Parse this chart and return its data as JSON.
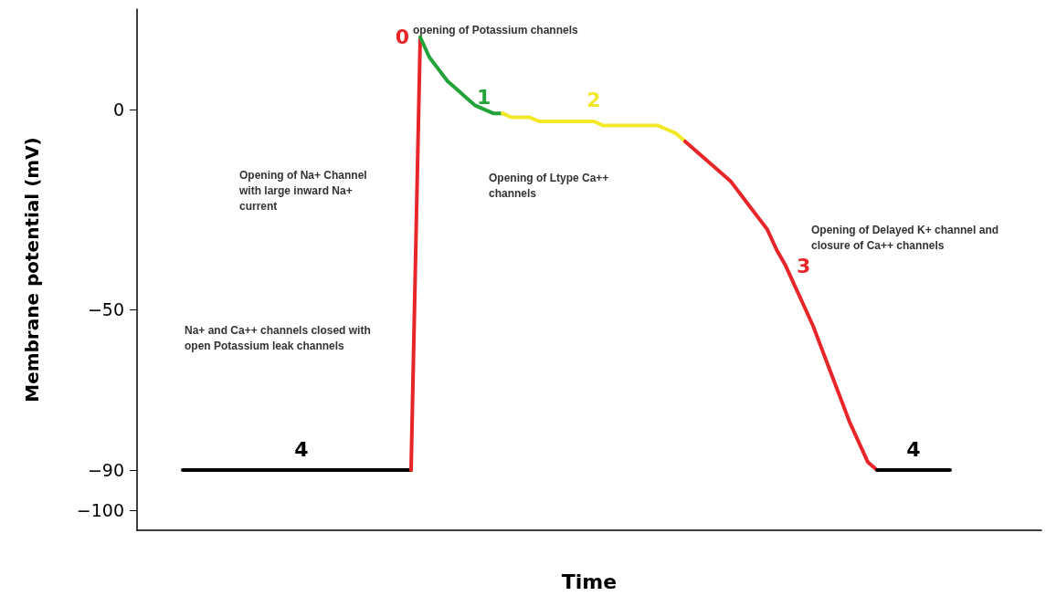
{
  "chart_data": {
    "type": "line",
    "xlabel": "Time",
    "ylabel": "Membrane potential (mV)",
    "ylim": [
      -105,
      25
    ],
    "yticks": [
      0,
      -50,
      -90,
      -100
    ],
    "grid": false,
    "legend": false,
    "marker": "none",
    "line_style": "solid",
    "categories": [
      null,
      null,
      null,
      null,
      null,
      null,
      null,
      null,
      null,
      null,
      null,
      null,
      null,
      null,
      null,
      null,
      null,
      null,
      null,
      null,
      null,
      null,
      null,
      null,
      null,
      null,
      null,
      null,
      null,
      null,
      null,
      null,
      null,
      null,
      null,
      null,
      null,
      null,
      null,
      null,
      null,
      null,
      null,
      null,
      null,
      null,
      null,
      null,
      null,
      null,
      null,
      null,
      null,
      null,
      null,
      null,
      null,
      null,
      null,
      null,
      null,
      null,
      null,
      null,
      null,
      null,
      null,
      null,
      null,
      null,
      null,
      null,
      null,
      null,
      null,
      null,
      null,
      null,
      null,
      null,
      null,
      null,
      null,
      null,
      null,
      null,
      null,
      null,
      null,
      null,
      null,
      null,
      null,
      null,
      null,
      null,
      null,
      null,
      null,
      null
    ],
    "series": [
      {
        "name": "4",
        "color": "#000000",
        "values": [
          null,
          null,
          null,
          null,
          null,
          -90,
          -90,
          -90,
          -90,
          -90,
          -90,
          -90,
          -90,
          -90,
          -90,
          -90,
          -90,
          -90,
          -90,
          -90,
          -90,
          -90,
          -90,
          -90,
          -90,
          -90,
          -90,
          -90,
          -90,
          -90,
          -90,
          null,
          null,
          null,
          null,
          null,
          null,
          null,
          null,
          null,
          null,
          null,
          null,
          null,
          null,
          null,
          null,
          null,
          null,
          null,
          null,
          null,
          null,
          null,
          null,
          null,
          null,
          null,
          null,
          null,
          null,
          null,
          null,
          null,
          null,
          null,
          null,
          null,
          null,
          null,
          null,
          null,
          null,
          null,
          null,
          null,
          null,
          null,
          null,
          null,
          null,
          null,
          null,
          null,
          null,
          null,
          null,
          null,
          null,
          null,
          null,
          null,
          null,
          null,
          null,
          null,
          null,
          null,
          null,
          null
        ]
      },
      {
        "name": "0",
        "color": "#e8262a",
        "values": [
          null,
          null,
          null,
          null,
          null,
          null,
          null,
          null,
          null,
          null,
          null,
          null,
          null,
          null,
          null,
          null,
          null,
          null,
          null,
          null,
          null,
          null,
          null,
          null,
          null,
          null,
          null,
          null,
          null,
          null,
          -90,
          18,
          null,
          null,
          null,
          null,
          null,
          null,
          null,
          null,
          null,
          null,
          null,
          null,
          null,
          null,
          null,
          null,
          null,
          null,
          null,
          null,
          null,
          null,
          null,
          null,
          null,
          null,
          null,
          null,
          null,
          null,
          null,
          null,
          null,
          null,
          null,
          null,
          null,
          null,
          null,
          null,
          null,
          null,
          null,
          null,
          null,
          null,
          null,
          null,
          null,
          null,
          null,
          null,
          null,
          null,
          null,
          null,
          null,
          null,
          null,
          null,
          null,
          null,
          null,
          null,
          null,
          null,
          null,
          null
        ]
      },
      {
        "name": "1",
        "color": "#22a33a",
        "values": [
          null,
          null,
          null,
          null,
          null,
          null,
          null,
          null,
          null,
          null,
          null,
          null,
          null,
          null,
          null,
          null,
          null,
          null,
          null,
          null,
          null,
          null,
          null,
          null,
          null,
          null,
          null,
          null,
          null,
          null,
          null,
          18,
          13,
          10,
          7,
          5,
          3,
          1,
          0,
          -1,
          -1,
          null,
          null,
          null,
          null,
          null,
          null,
          null,
          null,
          null,
          null,
          null,
          null,
          null,
          null,
          null,
          null,
          null,
          null,
          null,
          null,
          null,
          null,
          null,
          null,
          null,
          null,
          null,
          null,
          null,
          null,
          null,
          null,
          null,
          null,
          null,
          null,
          null,
          null,
          null,
          null,
          null,
          null,
          null,
          null,
          null,
          null,
          null,
          null,
          null,
          null,
          null,
          null,
          null,
          null,
          null,
          null,
          null,
          null,
          null
        ]
      },
      {
        "name": "2",
        "color": "#f2e827",
        "values": [
          null,
          null,
          null,
          null,
          null,
          null,
          null,
          null,
          null,
          null,
          null,
          null,
          null,
          null,
          null,
          null,
          null,
          null,
          null,
          null,
          null,
          null,
          null,
          null,
          null,
          null,
          null,
          null,
          null,
          null,
          null,
          null,
          null,
          null,
          null,
          null,
          null,
          null,
          null,
          null,
          -1,
          -2,
          -2,
          -2,
          -3,
          -3,
          -3,
          -3,
          -3,
          -3,
          -3,
          -4,
          -4,
          -4,
          -4,
          -4,
          -4,
          -4,
          -5,
          -6,
          -8,
          null,
          null,
          null,
          null,
          null,
          null,
          null,
          null,
          null,
          null,
          null,
          null,
          null,
          null,
          null,
          null,
          null,
          null,
          null,
          null,
          null,
          null,
          null,
          null,
          null,
          null,
          null,
          null,
          null,
          null,
          null,
          null,
          null,
          null,
          null,
          null,
          null,
          null,
          null
        ]
      },
      {
        "name": "3",
        "color": "#e8262a",
        "values": [
          null,
          null,
          null,
          null,
          null,
          null,
          null,
          null,
          null,
          null,
          null,
          null,
          null,
          null,
          null,
          null,
          null,
          null,
          null,
          null,
          null,
          null,
          null,
          null,
          null,
          null,
          null,
          null,
          null,
          null,
          null,
          null,
          null,
          null,
          null,
          null,
          null,
          null,
          null,
          null,
          null,
          null,
          null,
          null,
          null,
          null,
          null,
          null,
          null,
          null,
          null,
          null,
          null,
          null,
          null,
          null,
          null,
          null,
          null,
          null,
          -8,
          -10,
          -12,
          -14,
          -16,
          -18,
          -21,
          -24,
          -27,
          -30,
          -35,
          -39,
          -44,
          -49,
          -54,
          -60,
          -66,
          -72,
          -78,
          -83,
          -88,
          -90,
          null,
          null,
          null,
          null,
          null,
          null,
          null,
          null,
          null,
          null,
          null,
          null,
          null,
          null,
          null,
          null,
          null,
          null
        ]
      },
      {
        "name": "4",
        "color": "#000000",
        "values": [
          null,
          null,
          null,
          null,
          null,
          null,
          null,
          null,
          null,
          null,
          null,
          null,
          null,
          null,
          null,
          null,
          null,
          null,
          null,
          null,
          null,
          null,
          null,
          null,
          null,
          null,
          null,
          null,
          null,
          null,
          null,
          null,
          null,
          null,
          null,
          null,
          null,
          null,
          null,
          null,
          null,
          null,
          null,
          null,
          null,
          null,
          null,
          null,
          null,
          null,
          null,
          null,
          null,
          null,
          null,
          null,
          null,
          null,
          null,
          null,
          null,
          null,
          null,
          null,
          null,
          null,
          null,
          null,
          null,
          null,
          null,
          null,
          null,
          null,
          null,
          null,
          null,
          null,
          null,
          null,
          null,
          -90,
          -90,
          -90,
          -90,
          -90,
          -90,
          -90,
          -90,
          -90,
          null,
          null,
          null,
          null,
          null,
          null,
          null,
          null,
          null,
          null
        ]
      }
    ],
    "annotations": [
      "opening of Potassium channels",
      "Opening of Na+ Channel with large inward Na+ current",
      "Opening of Ltype Ca++ channels",
      "Opening of Delayed K+ channel and closure of Ca++ channels",
      "Na+ and Ca++ channels closed with open Potassium leak channels"
    ]
  }
}
